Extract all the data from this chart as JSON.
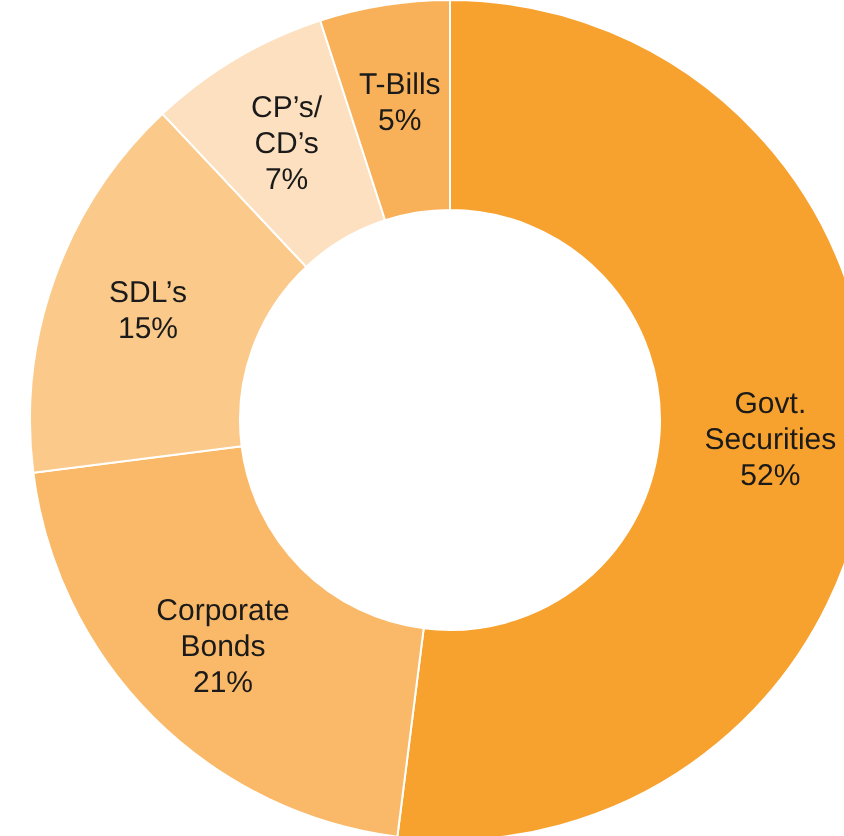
{
  "chart_data": {
    "type": "donut",
    "categories": [
      "Govt. Securities",
      "Corporate Bonds",
      "SDL’s",
      "CP’s/CD’s",
      "T-Bills"
    ],
    "values": [
      52,
      21,
      15,
      7,
      5
    ],
    "colors": [
      "#f7a12e",
      "#f9b968",
      "#fbc98a",
      "#fde0bf",
      "#f8b159"
    ],
    "value_labels": [
      "52%",
      "21%",
      "15%",
      "7%",
      "5%"
    ],
    "legend": false
  }
}
